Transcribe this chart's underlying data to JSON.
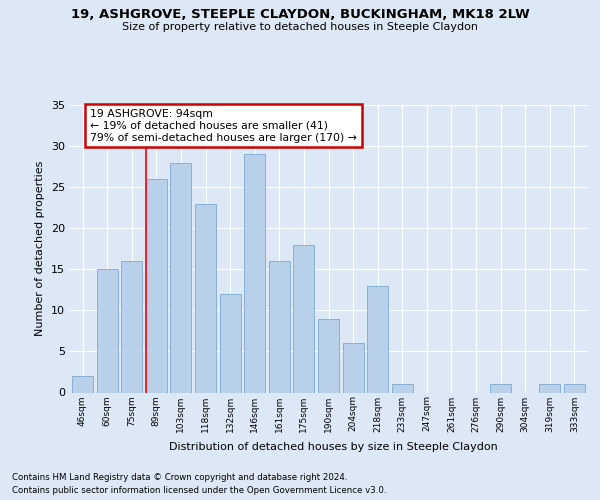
{
  "title": "19, ASHGROVE, STEEPLE CLAYDON, BUCKINGHAM, MK18 2LW",
  "subtitle": "Size of property relative to detached houses in Steeple Claydon",
  "xlabel": "Distribution of detached houses by size in Steeple Claydon",
  "ylabel": "Number of detached properties",
  "categories": [
    "46sqm",
    "60sqm",
    "75sqm",
    "89sqm",
    "103sqm",
    "118sqm",
    "132sqm",
    "146sqm",
    "161sqm",
    "175sqm",
    "190sqm",
    "204sqm",
    "218sqm",
    "233sqm",
    "247sqm",
    "261sqm",
    "276sqm",
    "290sqm",
    "304sqm",
    "319sqm",
    "333sqm"
  ],
  "values": [
    2,
    15,
    16,
    26,
    28,
    23,
    12,
    29,
    16,
    18,
    9,
    6,
    13,
    1,
    0,
    0,
    0,
    1,
    0,
    1,
    1
  ],
  "bar_color": "#b8d0ea",
  "bar_edge_color": "#7aaad0",
  "background_color": "#dce8f5",
  "grid_color": "#ffffff",
  "ylim": [
    0,
    35
  ],
  "yticks": [
    0,
    5,
    10,
    15,
    20,
    25,
    30,
    35
  ],
  "redline_bin_index": 3,
  "annotation_line1": "19 ASHGROVE: 94sqm",
  "annotation_line2": "← 19% of detached houses are smaller (41)",
  "annotation_line3": "79% of semi-detached houses are larger (170) →",
  "annotation_box_facecolor": "#ffffff",
  "annotation_box_edgecolor": "#cc0000",
  "footer1": "Contains HM Land Registry data © Crown copyright and database right 2024.",
  "footer2": "Contains public sector information licensed under the Open Government Licence v3.0."
}
